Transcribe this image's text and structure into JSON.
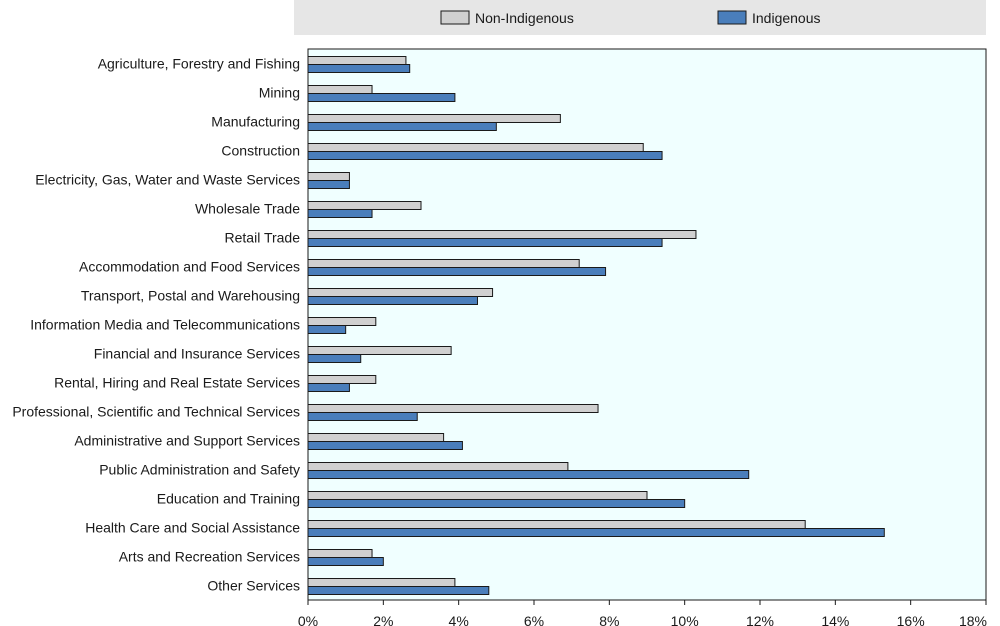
{
  "chart_data": {
    "type": "bar",
    "orientation": "horizontal",
    "categories": [
      "Agriculture, Forestry and Fishing",
      "Mining",
      "Manufacturing",
      "Construction",
      "Electricity, Gas, Water and Waste Services",
      "Wholesale Trade",
      "Retail Trade",
      "Accommodation and Food Services",
      "Transport, Postal and Warehousing",
      "Information Media and Telecommunications",
      "Financial and Insurance Services",
      "Rental, Hiring and Real Estate Services",
      "Professional, Scientific and Technical Services",
      "Administrative and Support Services",
      "Public Administration and Safety",
      "Education and Training",
      "Health Care and Social Assistance",
      "Arts and Recreation Services",
      "Other Services"
    ],
    "series": [
      {
        "name": "Non-Indigenous",
        "color": "#d0d0d0",
        "values": [
          2.6,
          1.7,
          6.7,
          8.9,
          1.1,
          3.0,
          10.3,
          7.2,
          4.9,
          1.8,
          3.8,
          1.8,
          7.7,
          3.6,
          6.9,
          9.0,
          13.2,
          1.7,
          3.9
        ]
      },
      {
        "name": "Indigenous",
        "color": "#4a7ebb",
        "values": [
          2.7,
          3.9,
          5.0,
          9.4,
          1.1,
          1.7,
          9.4,
          7.9,
          4.5,
          1.0,
          1.4,
          1.1,
          2.9,
          4.1,
          11.7,
          10.0,
          15.3,
          2.0,
          4.8
        ]
      }
    ],
    "x_ticks": [
      "0%",
      "2%",
      "4%",
      "6%",
      "8%",
      "10%",
      "12%",
      "14%",
      "16%",
      "18%"
    ],
    "xlim": [
      0,
      18
    ],
    "legend_position": "top"
  }
}
